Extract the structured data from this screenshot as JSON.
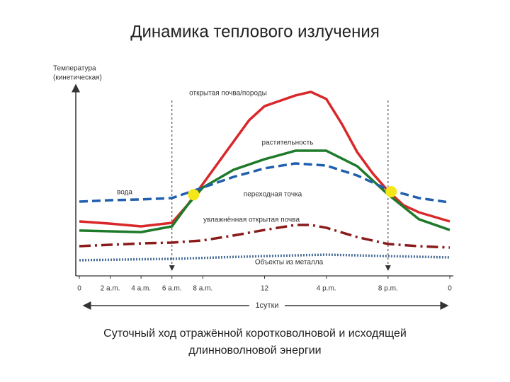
{
  "title": "Динамика теплового излучения",
  "caption": [
    "Суточный ход отражённой коротковолновой и исходящей",
    "длинноволновой энергии"
  ],
  "chart_data": {
    "type": "line",
    "y_label": [
      "Температура",
      "(кинетическая)"
    ],
    "duration_label": "1сутки",
    "xlim": [
      0,
      24
    ],
    "ylim": [
      0,
      100
    ],
    "xticks": [
      0,
      {
        "value": 2,
        "label": "2 a.m."
      },
      {
        "value": 4,
        "label": "4 a.m."
      },
      {
        "value": 6,
        "label": "6 a.m."
      },
      {
        "value": 8,
        "label": "8 a.m."
      },
      12,
      {
        "value": 16,
        "label": "4 p.m."
      },
      {
        "value": 20,
        "label": "8 p.m."
      },
      {
        "value": 24,
        "label": "0"
      }
    ],
    "markers_x": [
      6,
      20
    ],
    "crossover": {
      "label": "переходная точка",
      "x": [
        7.4,
        20.2
      ],
      "y": [
        41,
        42.5
      ],
      "color": "#f5e61a"
    },
    "series": [
      {
        "name": "открытая почва/породы",
        "color": "#d9282a",
        "style": "solid",
        "x": [
          0,
          2,
          4,
          6,
          7,
          8,
          10,
          11,
          12,
          14,
          15,
          16,
          17,
          18,
          19,
          20,
          21,
          22,
          24
        ],
        "values": [
          27.5,
          26.4,
          25,
          26.8,
          35.7,
          46.4,
          67.9,
          78.6,
          85.7,
          91.1,
          92.9,
          89.3,
          76.8,
          62.5,
          51.8,
          42.9,
          35.7,
          32.1,
          27.5
        ]
      },
      {
        "name": "растительность",
        "color": "#1e7a2a",
        "style": "solid",
        "x": [
          0,
          2,
          4,
          6,
          7,
          8,
          10,
          12,
          14,
          16,
          18,
          20,
          22,
          24
        ],
        "values": [
          22.9,
          22.5,
          22.1,
          25,
          35.7,
          44.6,
          53.6,
          58.9,
          63.2,
          63.2,
          55.4,
          41.1,
          28.6,
          23.2
        ]
      },
      {
        "name": "вода",
        "color": "#1f5fae",
        "style": "dashed",
        "x": [
          0,
          2,
          4,
          6,
          8,
          10,
          12,
          14,
          16,
          18,
          20,
          22,
          24
        ],
        "values": [
          37.5,
          38.2,
          38.6,
          39.3,
          44.6,
          50,
          54.3,
          56.8,
          55.7,
          50.7,
          43.6,
          39.3,
          37.1
        ]
      },
      {
        "name": "увлажнённая открытая почва",
        "color": "#8b1a1a",
        "style": "dashdot",
        "x": [
          0,
          2,
          4,
          6,
          8,
          10,
          12,
          14,
          15,
          16,
          18,
          20,
          22,
          24
        ],
        "values": [
          15,
          15.7,
          16.4,
          16.8,
          17.9,
          20.4,
          23.2,
          25.7,
          25.7,
          24.3,
          19.6,
          16.1,
          15,
          14.3
        ]
      },
      {
        "name": "Объекты из металла",
        "color": "#4a6f9a",
        "style": "dotted",
        "x": [
          0,
          6,
          12,
          16,
          20,
          24
        ],
        "values": [
          7.9,
          8.6,
          10,
          10.7,
          10,
          9.3
        ]
      }
    ]
  }
}
